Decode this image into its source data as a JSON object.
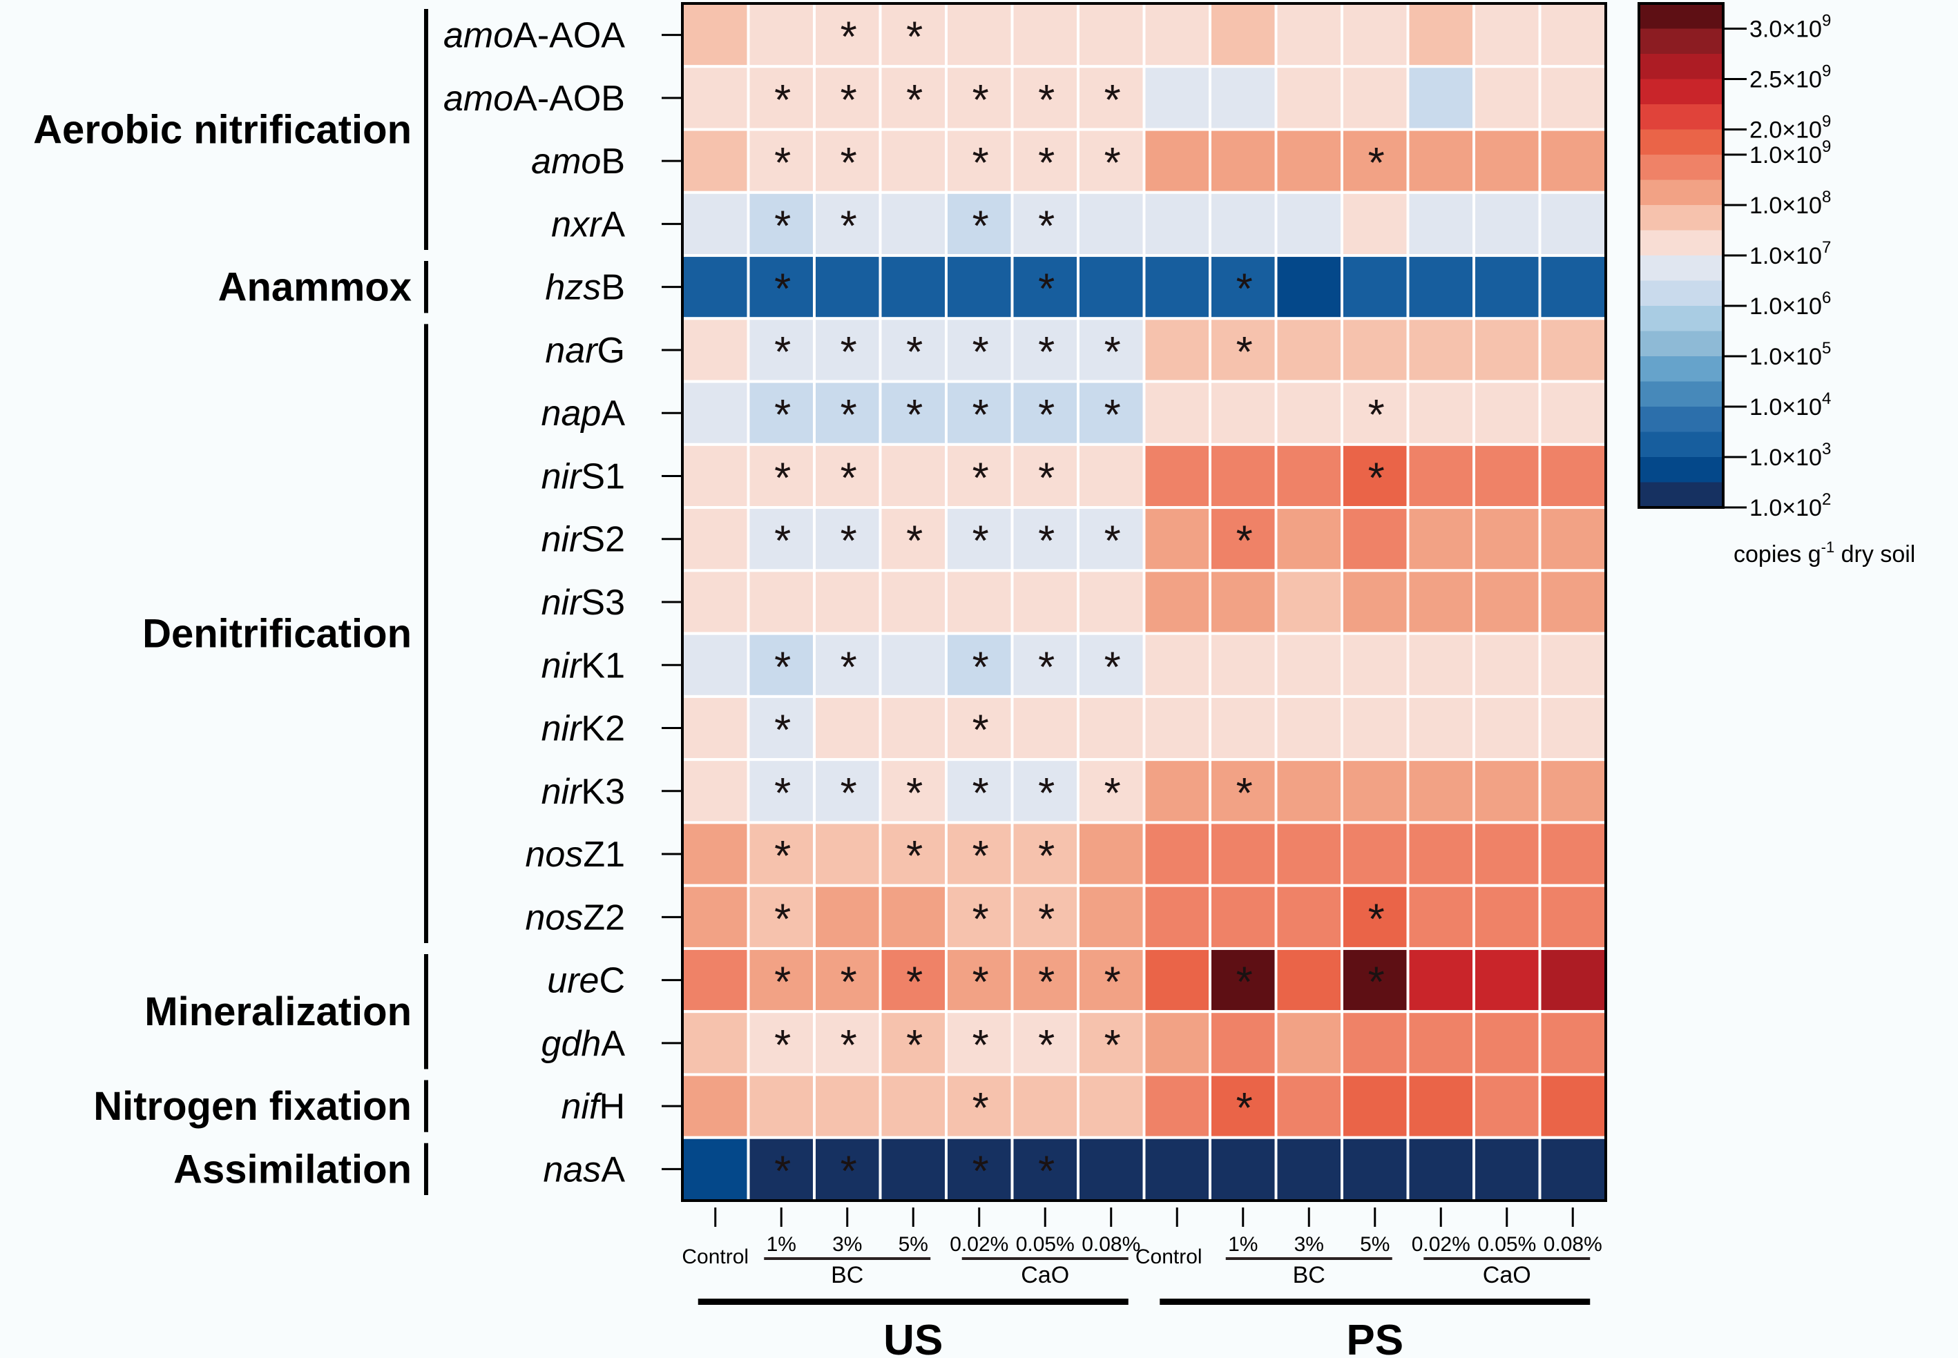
{
  "chart_data": {
    "type": "heatmap",
    "title": "",
    "value_unit": "copies g-1 dry soil",
    "color_scale_note": "cell values are colorbar bin indices (0 = lowest, ~1.0×10^2; 19 = highest, ~3.0×10^9)",
    "sites": [
      {
        "name": "US",
        "columns": [
          "Control",
          "1%",
          "3%",
          "5%",
          "0.02%",
          "0.05%",
          "0.08%"
        ],
        "groups": [
          {
            "name": "BC",
            "columns": [
              "1%",
              "3%",
              "5%"
            ]
          },
          {
            "name": "CaO",
            "columns": [
              "0.02%",
              "0.05%",
              "0.08%"
            ]
          }
        ]
      },
      {
        "name": "PS",
        "columns": [
          "Control",
          "1%",
          "3%",
          "5%",
          "0.02%",
          "0.05%",
          "0.08%"
        ],
        "groups": [
          {
            "name": "BC",
            "columns": [
              "1%",
              "3%",
              "5%"
            ]
          },
          {
            "name": "CaO",
            "columns": [
              "0.02%",
              "0.05%",
              "0.08%"
            ]
          }
        ]
      }
    ],
    "columns": [
      "US Control",
      "US BC 1%",
      "US BC 3%",
      "US BC 5%",
      "US CaO 0.02%",
      "US CaO 0.05%",
      "US CaO 0.08%",
      "PS Control",
      "PS BC 1%",
      "PS BC 3%",
      "PS BC 5%",
      "PS CaO 0.02%",
      "PS CaO 0.05%",
      "PS CaO 0.08%"
    ],
    "categories": [
      {
        "name": "Aerobic nitrification",
        "rows": [
          0,
          3
        ]
      },
      {
        "name": "Anammox",
        "rows": [
          4,
          4
        ]
      },
      {
        "name": "Denitrification",
        "rows": [
          5,
          14
        ]
      },
      {
        "name": "Mineralization",
        "rows": [
          15,
          16
        ]
      },
      {
        "name": "Nitrogen fixation",
        "rows": [
          17,
          17
        ]
      },
      {
        "name": "Assimilation",
        "rows": [
          18,
          18
        ]
      }
    ],
    "rows": [
      {
        "italic": "amo",
        "plain": "A-AOA",
        "values": [
          11,
          10,
          10,
          10,
          10,
          10,
          10,
          10,
          11,
          10,
          10,
          11,
          10,
          10
        ],
        "sig": [
          0,
          0,
          1,
          1,
          0,
          0,
          0,
          0,
          0,
          0,
          0,
          0,
          0,
          0
        ]
      },
      {
        "italic": "amo",
        "plain": "A-AOB",
        "values": [
          10,
          10,
          10,
          10,
          10,
          10,
          10,
          9,
          9,
          10,
          10,
          8,
          10,
          10
        ],
        "sig": [
          0,
          1,
          1,
          1,
          1,
          1,
          1,
          0,
          0,
          0,
          0,
          0,
          0,
          0
        ]
      },
      {
        "italic": "amo",
        "plain": "B",
        "values": [
          11,
          10,
          10,
          10,
          10,
          10,
          10,
          12,
          12,
          12,
          12,
          12,
          12,
          12
        ],
        "sig": [
          0,
          1,
          1,
          0,
          1,
          1,
          1,
          0,
          0,
          0,
          1,
          0,
          0,
          0
        ]
      },
      {
        "italic": "nxr",
        "plain": "A",
        "values": [
          9,
          8,
          9,
          9,
          8,
          9,
          9,
          9,
          9,
          9,
          10,
          9,
          9,
          9
        ],
        "sig": [
          0,
          1,
          1,
          0,
          1,
          1,
          0,
          0,
          0,
          0,
          0,
          0,
          0,
          0
        ]
      },
      {
        "italic": "hzs",
        "plain": "B",
        "values": [
          2,
          2,
          2,
          2,
          2,
          2,
          2,
          2,
          2,
          1,
          2,
          2,
          2,
          2
        ],
        "sig": [
          0,
          1,
          0,
          0,
          0,
          1,
          0,
          0,
          1,
          0,
          0,
          0,
          0,
          0
        ]
      },
      {
        "italic": "nar",
        "plain": "G",
        "values": [
          10,
          9,
          9,
          9,
          9,
          9,
          9,
          11,
          11,
          11,
          11,
          11,
          11,
          11
        ],
        "sig": [
          0,
          1,
          1,
          1,
          1,
          1,
          1,
          0,
          1,
          0,
          0,
          0,
          0,
          0
        ]
      },
      {
        "italic": "nap",
        "plain": "A",
        "values": [
          9,
          8,
          8,
          8,
          8,
          8,
          8,
          10,
          10,
          10,
          10,
          10,
          10,
          10
        ],
        "sig": [
          0,
          1,
          1,
          1,
          1,
          1,
          1,
          0,
          0,
          0,
          1,
          0,
          0,
          0
        ]
      },
      {
        "italic": "nir",
        "plain": "S1",
        "values": [
          10,
          10,
          10,
          10,
          10,
          10,
          10,
          13,
          13,
          13,
          14,
          13,
          13,
          13
        ],
        "sig": [
          0,
          1,
          1,
          0,
          1,
          1,
          0,
          0,
          0,
          0,
          1,
          0,
          0,
          0
        ]
      },
      {
        "italic": "nir",
        "plain": "S2",
        "values": [
          10,
          9,
          9,
          10,
          9,
          9,
          9,
          12,
          13,
          12,
          13,
          12,
          12,
          12
        ],
        "sig": [
          0,
          1,
          1,
          1,
          1,
          1,
          1,
          0,
          1,
          0,
          0,
          0,
          0,
          0
        ]
      },
      {
        "italic": "nir",
        "plain": "S3",
        "values": [
          10,
          10,
          10,
          10,
          10,
          10,
          10,
          12,
          12,
          11,
          12,
          12,
          12,
          12
        ],
        "sig": [
          0,
          0,
          0,
          0,
          0,
          0,
          0,
          0,
          0,
          0,
          0,
          0,
          0,
          0
        ]
      },
      {
        "italic": "nir",
        "plain": "K1",
        "values": [
          9,
          8,
          9,
          9,
          8,
          9,
          9,
          10,
          10,
          10,
          10,
          10,
          10,
          10
        ],
        "sig": [
          0,
          1,
          1,
          0,
          1,
          1,
          1,
          0,
          0,
          0,
          0,
          0,
          0,
          0
        ]
      },
      {
        "italic": "nir",
        "plain": "K2",
        "values": [
          10,
          9,
          10,
          10,
          10,
          10,
          10,
          10,
          10,
          10,
          10,
          10,
          10,
          10
        ],
        "sig": [
          0,
          1,
          0,
          0,
          1,
          0,
          0,
          0,
          0,
          0,
          0,
          0,
          0,
          0
        ]
      },
      {
        "italic": "nir",
        "plain": "K3",
        "values": [
          10,
          9,
          9,
          10,
          9,
          9,
          10,
          12,
          12,
          12,
          12,
          12,
          12,
          12
        ],
        "sig": [
          0,
          1,
          1,
          1,
          1,
          1,
          1,
          0,
          1,
          0,
          0,
          0,
          0,
          0
        ]
      },
      {
        "italic": "nos",
        "plain": "Z1",
        "values": [
          12,
          11,
          11,
          11,
          11,
          11,
          12,
          13,
          13,
          13,
          13,
          13,
          13,
          13
        ],
        "sig": [
          0,
          1,
          0,
          1,
          1,
          1,
          0,
          0,
          0,
          0,
          0,
          0,
          0,
          0
        ]
      },
      {
        "italic": "nos",
        "plain": "Z2",
        "values": [
          12,
          11,
          12,
          12,
          11,
          11,
          12,
          13,
          13,
          13,
          14,
          13,
          13,
          13
        ],
        "sig": [
          0,
          1,
          0,
          0,
          1,
          1,
          0,
          0,
          0,
          0,
          1,
          0,
          0,
          0
        ]
      },
      {
        "italic": "ure",
        "plain": "C",
        "values": [
          13,
          12,
          12,
          13,
          12,
          12,
          12,
          14,
          19,
          14,
          19,
          16,
          16,
          17
        ],
        "sig": [
          0,
          1,
          1,
          1,
          1,
          1,
          1,
          0,
          1,
          0,
          1,
          0,
          0,
          0
        ]
      },
      {
        "italic": "gdh",
        "plain": "A",
        "values": [
          11,
          10,
          10,
          11,
          10,
          10,
          11,
          12,
          13,
          12,
          13,
          13,
          13,
          13
        ],
        "sig": [
          0,
          1,
          1,
          1,
          1,
          1,
          1,
          0,
          0,
          0,
          0,
          0,
          0,
          0
        ]
      },
      {
        "italic": "nif",
        "plain": "H",
        "values": [
          12,
          11,
          11,
          11,
          11,
          11,
          11,
          13,
          14,
          13,
          14,
          14,
          13,
          14
        ],
        "sig": [
          0,
          0,
          0,
          0,
          1,
          0,
          0,
          0,
          1,
          0,
          0,
          0,
          0,
          0
        ]
      },
      {
        "italic": "nas",
        "plain": "A",
        "values": [
          1,
          0,
          0,
          0,
          0,
          0,
          0,
          0,
          0,
          0,
          0,
          0,
          0,
          0
        ],
        "sig": [
          0,
          1,
          1,
          0,
          1,
          1,
          0,
          0,
          0,
          0,
          0,
          0,
          0,
          0
        ]
      }
    ],
    "colorbar": {
      "colors": [
        "#163161",
        "#04488a",
        "#175e9e",
        "#2c6fab",
        "#4789ba",
        "#66a3cb",
        "#8ebad6",
        "#a9cce3",
        "#c9daec",
        "#e0e6f0",
        "#f8ddd4",
        "#f6c2ad",
        "#f2a285",
        "#ef8267",
        "#ea6448",
        "#e0433a",
        "#c9252a",
        "#ad1c24",
        "#8c1c22",
        "#5e0f14"
      ],
      "ticks": [
        {
          "mantissa": "1.0×10",
          "exp": "2",
          "bin_edge": 0
        },
        {
          "mantissa": "1.0×10",
          "exp": "3",
          "bin_edge": 2
        },
        {
          "mantissa": "1.0×10",
          "exp": "4",
          "bin_edge": 4
        },
        {
          "mantissa": "1.0×10",
          "exp": "5",
          "bin_edge": 6
        },
        {
          "mantissa": "1.0×10",
          "exp": "6",
          "bin_edge": 8
        },
        {
          "mantissa": "1.0×10",
          "exp": "7",
          "bin_edge": 10
        },
        {
          "mantissa": "1.0×10",
          "exp": "8",
          "bin_edge": 12
        },
        {
          "mantissa": "1.0×10",
          "exp": "9",
          "bin_edge": 14
        },
        {
          "mantissa": "2.0×10",
          "exp": "9",
          "bin_edge": 15
        },
        {
          "mantissa": "2.5×10",
          "exp": "9",
          "bin_edge": 17
        },
        {
          "mantissa": "3.0×10",
          "exp": "9",
          "bin_edge": 19
        }
      ],
      "unit_prefix": "copies g",
      "unit_exp": "-1",
      "unit_suffix": " dry soil"
    },
    "significance_marker": "*"
  }
}
